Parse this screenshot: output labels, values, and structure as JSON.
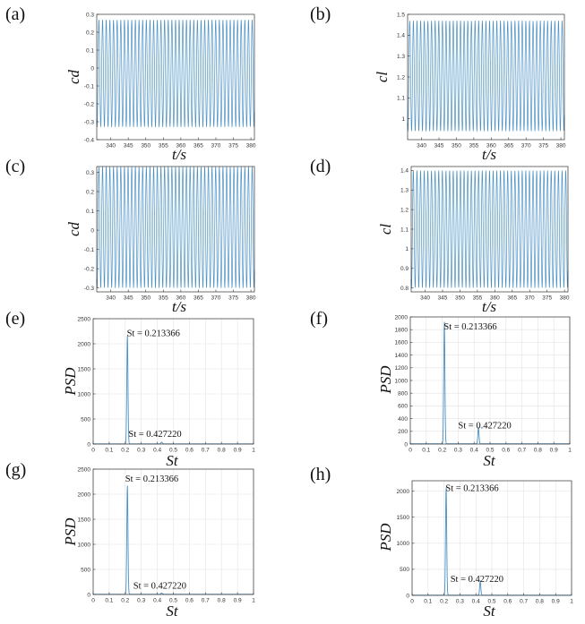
{
  "chart_data": [
    {
      "id": "a",
      "panel_label": "(a)",
      "type": "line",
      "xlabel": "t/s",
      "ylabel": "cd",
      "xlim": [
        336,
        381
      ],
      "ylim": [
        -0.4,
        0.3
      ],
      "xticks": [
        "340",
        "345",
        "350",
        "355",
        "360",
        "365",
        "370",
        "375",
        "380"
      ],
      "yticks": [
        "-0.4",
        "-0.3",
        "-0.2",
        "-0.1",
        "0",
        "0.1",
        "0.2",
        "0.3"
      ],
      "series": [
        {
          "x_start": 336,
          "x_end": 381,
          "y_min": -0.33,
          "y_max": 0.27,
          "frequency": 0.2134
        }
      ],
      "color": "#4a90c4",
      "grid": false
    },
    {
      "id": "b",
      "panel_label": "(b)",
      "type": "line",
      "xlabel": "t/s",
      "ylabel": "cl",
      "xlim": [
        336,
        381
      ],
      "ylim": [
        0.9,
        1.5
      ],
      "xticks": [
        "340",
        "345",
        "350",
        "355",
        "360",
        "365",
        "370",
        "375",
        "380"
      ],
      "yticks": [
        "1",
        "1.1",
        "1.2",
        "1.3",
        "1.4",
        "1.5"
      ],
      "series": [
        {
          "x_start": 336,
          "x_end": 381,
          "y_min": 0.94,
          "y_max": 1.47,
          "frequency": 0.2134
        }
      ],
      "color": "#4a90c4",
      "grid": false
    },
    {
      "id": "c",
      "panel_label": "(c)",
      "type": "line",
      "xlabel": "t/s",
      "ylabel": "cd",
      "xlim": [
        336,
        381
      ],
      "ylim": [
        -0.32,
        0.33
      ],
      "xticks": [
        "340",
        "345",
        "350",
        "355",
        "360",
        "365",
        "370",
        "375",
        "380"
      ],
      "yticks": [
        "-0.3",
        "-0.2",
        "-0.1",
        "0",
        "0.1",
        "0.2",
        "0.3"
      ],
      "series": [
        {
          "x_start": 336,
          "x_end": 381,
          "y_min": -0.3,
          "y_max": 0.33,
          "frequency": 0.2134
        }
      ],
      "color": "#4a90c4",
      "grid": false
    },
    {
      "id": "d",
      "panel_label": "(d)",
      "type": "line",
      "xlabel": "t/s",
      "ylabel": "cl",
      "xlim": [
        336,
        381
      ],
      "ylim": [
        0.78,
        1.42
      ],
      "xticks": [
        "340",
        "345",
        "350",
        "355",
        "360",
        "365",
        "370",
        "375",
        "380"
      ],
      "yticks": [
        "0.8",
        "0.9",
        "1",
        "1.1",
        "1.2",
        "1.3",
        "1.4"
      ],
      "series": [
        {
          "x_start": 336,
          "x_end": 381,
          "y_min": 0.8,
          "y_max": 1.4,
          "frequency": 0.2134
        }
      ],
      "color": "#4a90c4",
      "grid": false
    },
    {
      "id": "e",
      "panel_label": "(e)",
      "type": "line",
      "xlabel": "St",
      "ylabel": "PSD",
      "xlim": [
        0,
        1
      ],
      "ylim": [
        0,
        2500
      ],
      "xticks": [
        "0",
        "0.1",
        "0.2",
        "0.3",
        "0.4",
        "0.5",
        "0.6",
        "0.7",
        "0.8",
        "0.9",
        "1"
      ],
      "yticks": [
        "0",
        "500",
        "1000",
        "1500",
        "2000",
        "2500"
      ],
      "peaks": [
        {
          "x": 0.213366,
          "y": 2200,
          "width": 0.005
        },
        {
          "x": 0.42722,
          "y": 35,
          "width": 0.006
        }
      ],
      "annotations": [
        {
          "text": "St = 0.213366",
          "x": 0.21,
          "y": 2150
        },
        {
          "text": "St = 0.427220",
          "x": 0.22,
          "y": 140
        }
      ],
      "color": "#4a90c4",
      "grid": true
    },
    {
      "id": "f",
      "panel_label": "(f)",
      "type": "line",
      "xlabel": "St",
      "ylabel": "PSD",
      "xlim": [
        0,
        1
      ],
      "ylim": [
        0,
        2000
      ],
      "xticks": [
        "0",
        "0.1",
        "0.2",
        "0.3",
        "0.4",
        "0.5",
        "0.6",
        "0.7",
        "0.8",
        "0.9",
        "1"
      ],
      "yticks": [
        "0",
        "200",
        "400",
        "600",
        "800",
        "1000",
        "1200",
        "1400",
        "1600",
        "1800",
        "2000"
      ],
      "peaks": [
        {
          "x": 0.213366,
          "y": 1950,
          "width": 0.005
        },
        {
          "x": 0.42722,
          "y": 260,
          "width": 0.005
        }
      ],
      "annotations": [
        {
          "text": "St = 0.213366",
          "x": 0.21,
          "y": 1800
        },
        {
          "text": "St = 0.427220",
          "x": 0.3,
          "y": 250
        }
      ],
      "color": "#4a90c4",
      "grid": true
    },
    {
      "id": "g",
      "panel_label": "(g)",
      "type": "line",
      "xlabel": "St",
      "ylabel": "PSD",
      "xlim": [
        0,
        1
      ],
      "ylim": [
        0,
        2500
      ],
      "xticks": [
        "0",
        "0.1",
        "0.2",
        "0.3",
        "0.4",
        "0.5",
        "0.6",
        "0.7",
        "0.8",
        "0.9",
        "1"
      ],
      "yticks": [
        "0",
        "500",
        "1000",
        "1500",
        "2000",
        "2500"
      ],
      "peaks": [
        {
          "x": 0.213366,
          "y": 2200,
          "width": 0.005
        },
        {
          "x": 0.42722,
          "y": 25,
          "width": 0.006
        }
      ],
      "annotations": [
        {
          "text": "St = 0.213366",
          "x": 0.2,
          "y": 2250
        },
        {
          "text": "St = 0.427220",
          "x": 0.25,
          "y": 120
        }
      ],
      "color": "#4a90c4",
      "grid": true
    },
    {
      "id": "h",
      "panel_label": "(h)",
      "type": "line",
      "xlabel": "St",
      "ylabel": "PSD",
      "xlim": [
        0,
        1
      ],
      "ylim": [
        0,
        2200
      ],
      "xticks": [
        "0",
        "0.1",
        "0.2",
        "0.3",
        "0.4",
        "0.5",
        "0.6",
        "0.7",
        "0.8",
        "0.9",
        "1"
      ],
      "yticks": [
        "0",
        "500",
        "1000",
        "1500",
        "2000"
      ],
      "peaks": [
        {
          "x": 0.213366,
          "y": 2100,
          "width": 0.005
        },
        {
          "x": 0.42722,
          "y": 270,
          "width": 0.005
        }
      ],
      "annotations": [
        {
          "text": "St = 0.213366",
          "x": 0.21,
          "y": 2000
        },
        {
          "text": "St = 0.427220",
          "x": 0.24,
          "y": 260
        }
      ],
      "color": "#4a90c4",
      "grid": true
    }
  ]
}
